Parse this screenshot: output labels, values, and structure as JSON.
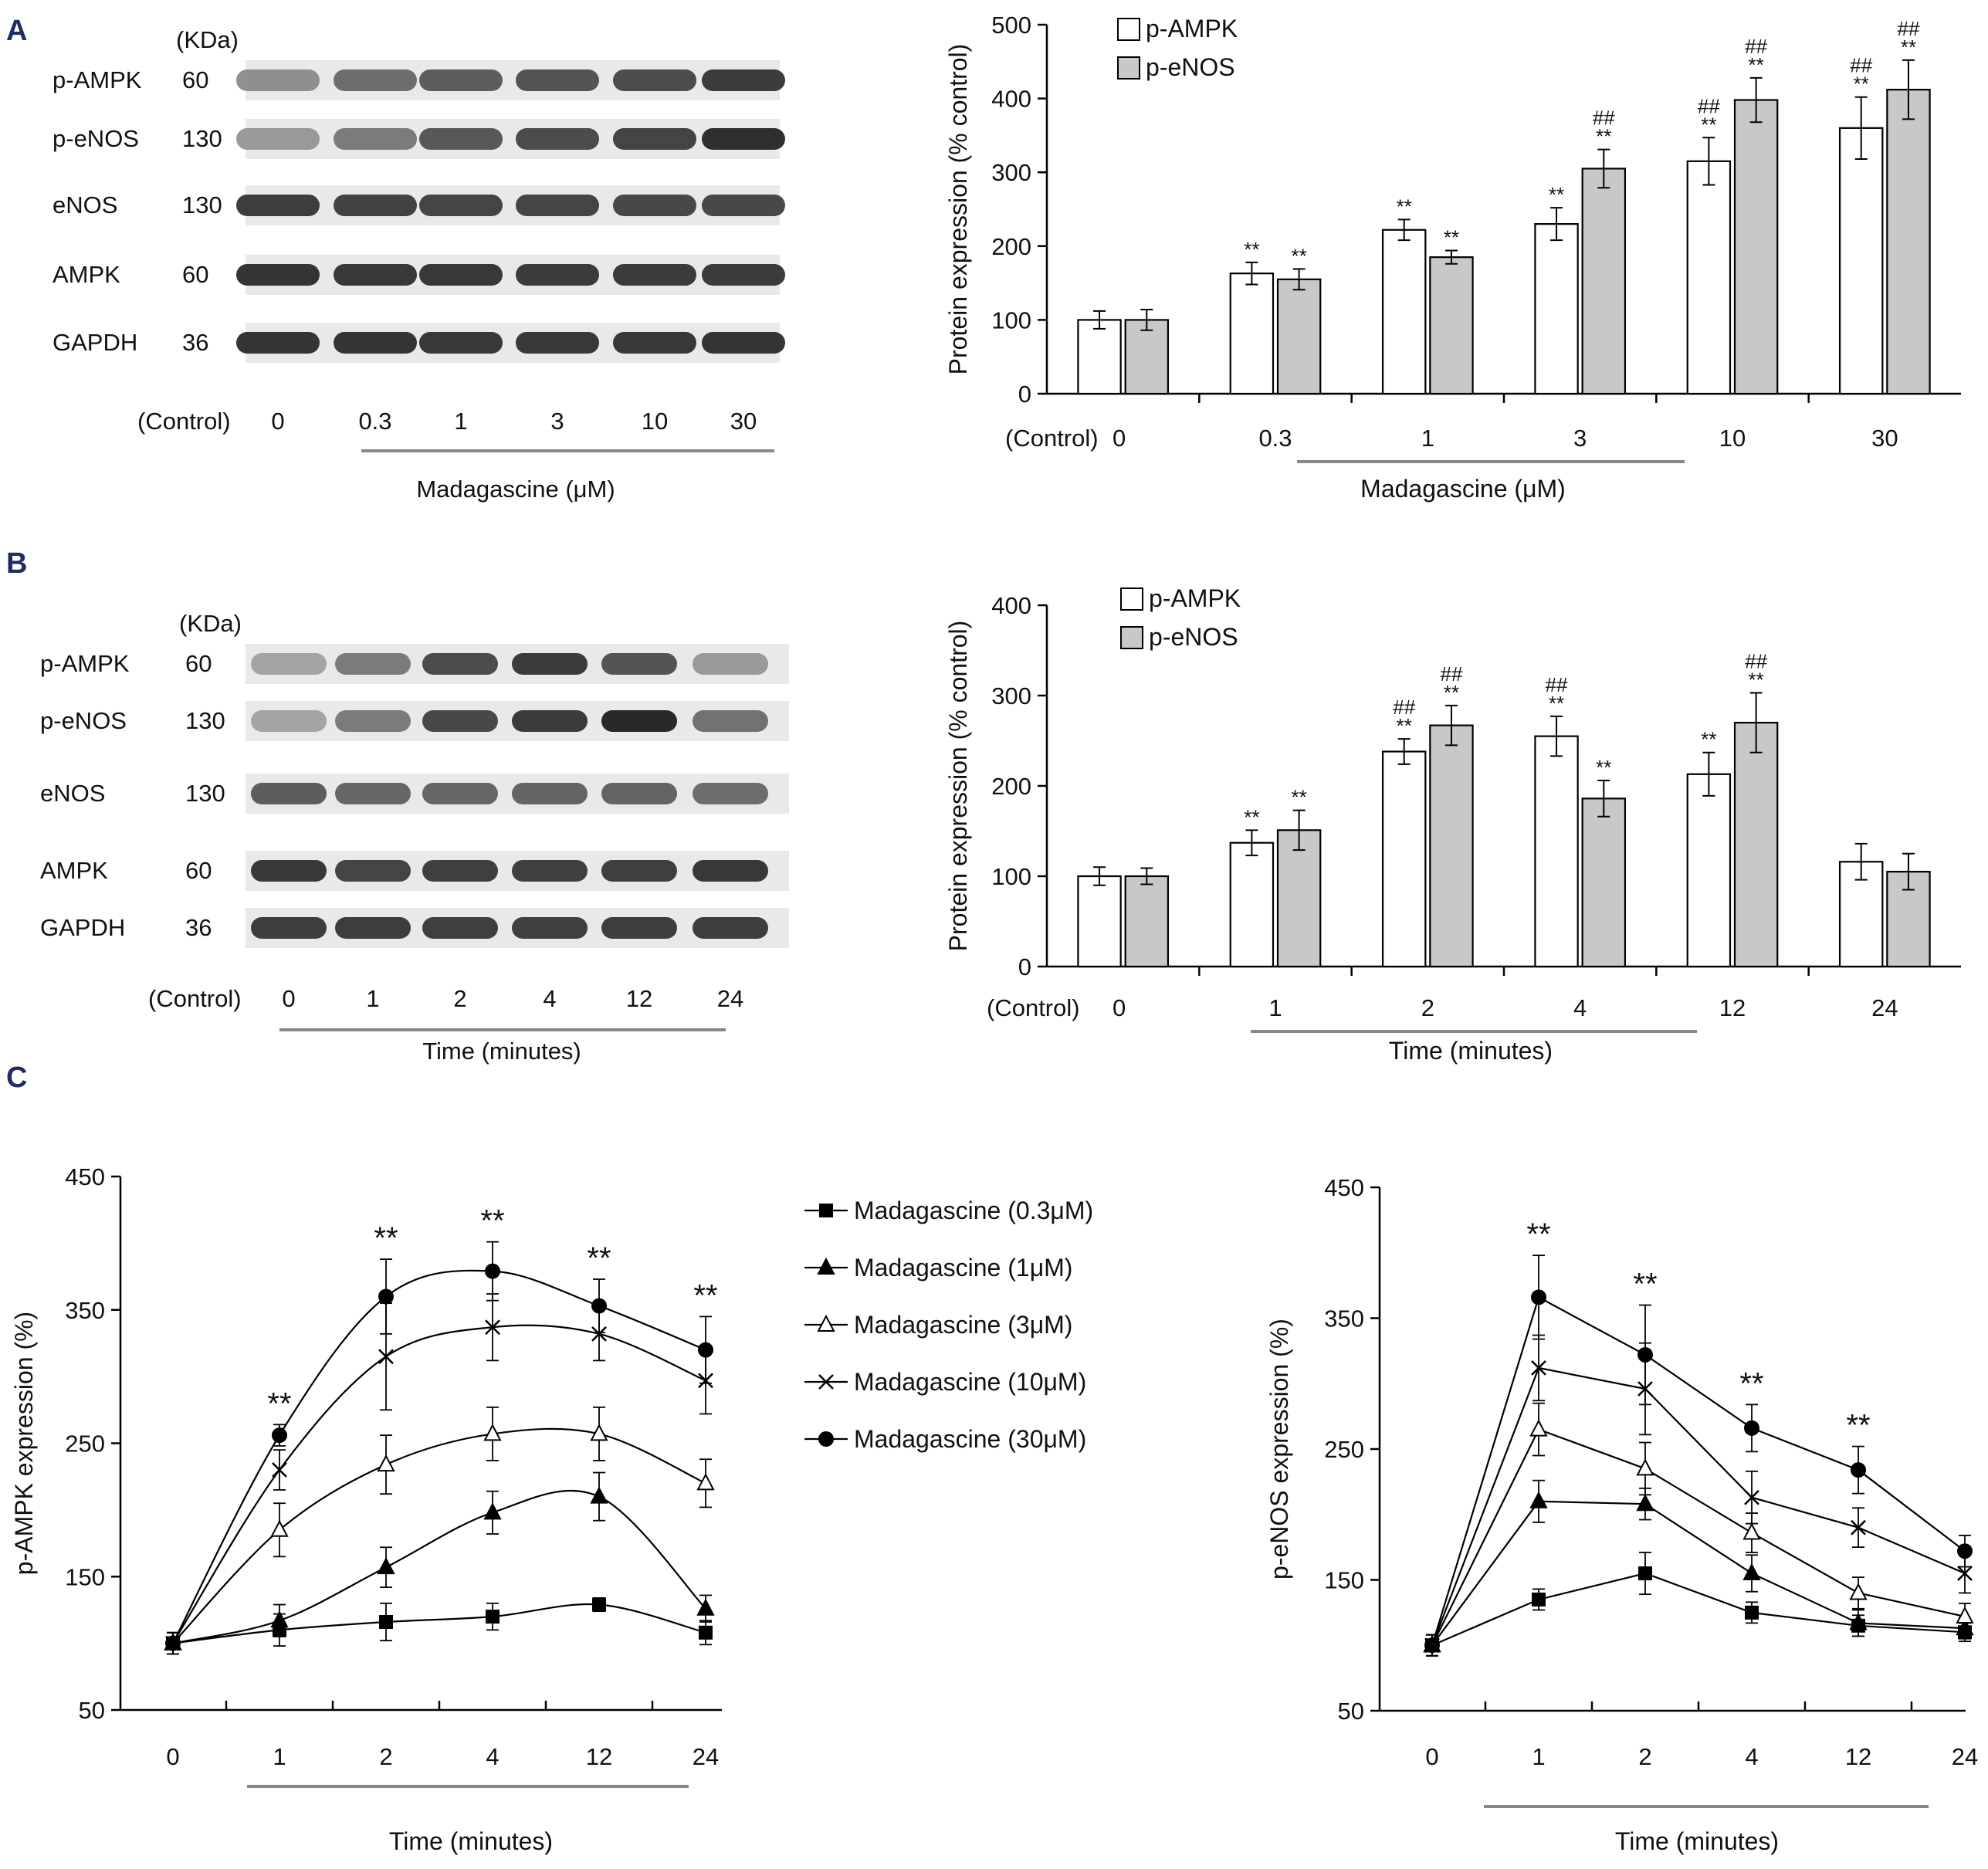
{
  "panel_labels": {
    "a": "A",
    "b": "B",
    "c": "C"
  },
  "blot_a": {
    "kda_header": "(KDa)",
    "rows": [
      {
        "name": "p-AMPK",
        "kda": "60",
        "intensity": [
          0.45,
          0.62,
          0.7,
          0.74,
          0.78,
          0.86
        ]
      },
      {
        "name": "p-eNOS",
        "kda": "130",
        "intensity": [
          0.4,
          0.55,
          0.72,
          0.78,
          0.82,
          0.92
        ]
      },
      {
        "name": "eNOS",
        "kda": "130",
        "intensity": [
          0.85,
          0.83,
          0.82,
          0.82,
          0.8,
          0.8
        ]
      },
      {
        "name": "AMPK",
        "kda": "60",
        "intensity": [
          0.9,
          0.88,
          0.88,
          0.86,
          0.86,
          0.86
        ]
      },
      {
        "name": "GAPDH",
        "kda": "36",
        "intensity": [
          0.9,
          0.9,
          0.88,
          0.88,
          0.88,
          0.9
        ]
      }
    ],
    "control_label": "(Control)",
    "lanes": [
      "0",
      "0.3",
      "1",
      "3",
      "10",
      "30"
    ],
    "group_label": "Madagascine",
    "group_unit": "(μM)"
  },
  "blot_b": {
    "kda_header": "(KDa)",
    "rows": [
      {
        "name": "p-AMPK",
        "kda": "60",
        "intensity": [
          0.35,
          0.55,
          0.78,
          0.86,
          0.74,
          0.4
        ]
      },
      {
        "name": "p-eNOS",
        "kda": "130",
        "intensity": [
          0.35,
          0.55,
          0.8,
          0.86,
          0.95,
          0.6
        ]
      },
      {
        "name": "eNOS",
        "kda": "130",
        "intensity": [
          0.7,
          0.65,
          0.65,
          0.66,
          0.66,
          0.62
        ]
      },
      {
        "name": "AMPK",
        "kda": "60",
        "intensity": [
          0.88,
          0.82,
          0.84,
          0.84,
          0.84,
          0.88
        ]
      },
      {
        "name": "GAPDH",
        "kda": "36",
        "intensity": [
          0.85,
          0.85,
          0.84,
          0.84,
          0.85,
          0.85
        ]
      }
    ],
    "control_label": "(Control)",
    "lanes": [
      "0",
      "1",
      "2",
      "4",
      "12",
      "24"
    ],
    "group_label": "Time (minutes)"
  },
  "chart_data": [
    {
      "id": "A-bar",
      "type": "bar",
      "title": "",
      "ylabel": "Protein expression (% control)",
      "xlabel": "Madagascine",
      "xlabel_unit": "(μM)",
      "control_label": "(Control)",
      "categories": [
        "0",
        "0.3",
        "1",
        "3",
        "10",
        "30"
      ],
      "ylim": [
        0,
        500
      ],
      "yticks": [
        0,
        100,
        200,
        300,
        400,
        500
      ],
      "legend_position": "top-left",
      "series": [
        {
          "name": "p-AMPK",
          "color": "#ffffff",
          "values": [
            100,
            163,
            222,
            230,
            315,
            360
          ],
          "errors": [
            12,
            15,
            14,
            22,
            32,
            42
          ],
          "sig": [
            "",
            "**",
            "**",
            "**",
            "##\n**",
            "##\n**"
          ]
        },
        {
          "name": "p-eNOS",
          "color": "#c8c8c8",
          "values": [
            100,
            155,
            185,
            305,
            398,
            412
          ],
          "errors": [
            14,
            14,
            9,
            26,
            30,
            40
          ],
          "sig": [
            "",
            "**",
            "**",
            "##\n**",
            "##\n**",
            "##\n**"
          ]
        }
      ]
    },
    {
      "id": "B-bar",
      "type": "bar",
      "title": "",
      "ylabel": "Protein expression (% control)",
      "xlabel": "Time (minutes)",
      "control_label": "(Control)",
      "categories": [
        "0",
        "1",
        "2",
        "4",
        "12",
        "24"
      ],
      "ylim": [
        0,
        400
      ],
      "yticks": [
        0,
        100,
        200,
        300,
        400
      ],
      "legend_position": "top-left",
      "series": [
        {
          "name": "p-AMPK",
          "color": "#ffffff",
          "values": [
            100,
            137,
            238,
            255,
            213,
            116
          ],
          "errors": [
            10,
            14,
            14,
            22,
            24,
            20
          ],
          "sig": [
            "",
            "**",
            "##\n**",
            "##\n**",
            "**",
            ""
          ]
        },
        {
          "name": "p-eNOS",
          "color": "#c8c8c8",
          "values": [
            100,
            151,
            267,
            186,
            270,
            105
          ],
          "errors": [
            9,
            22,
            22,
            20,
            33,
            20
          ],
          "sig": [
            "",
            "**",
            "##\n**",
            "**",
            "##\n**",
            ""
          ]
        }
      ]
    },
    {
      "id": "C-left",
      "type": "line",
      "title": "",
      "ylabel": "p-AMPK expression (%)",
      "xlabel": "Time (minutes)",
      "categories": [
        "0",
        "1",
        "2",
        "4",
        "12",
        "24"
      ],
      "ylim": [
        50,
        450
      ],
      "yticks": [
        50,
        150,
        250,
        350,
        450
      ],
      "legend_position": "right",
      "sig_labels": [
        "",
        "**",
        "**",
        "**",
        "**",
        "**"
      ],
      "series": [
        {
          "name": "Madagascine",
          "conc": "(0.3μM)",
          "marker": "square",
          "values": [
            100,
            110,
            116,
            120,
            129,
            108
          ],
          "errors": [
            8,
            12,
            14,
            10,
            5,
            9
          ]
        },
        {
          "name": "Madagascine",
          "conc": "(1μM)",
          "marker": "triangle",
          "values": [
            100,
            117,
            157,
            198,
            210,
            126
          ],
          "errors": [
            8,
            12,
            15,
            16,
            18,
            10
          ]
        },
        {
          "name": "Madagascine",
          "conc": "(3μM)",
          "marker": "triangle-open",
          "values": [
            100,
            185,
            234,
            257,
            257,
            220
          ],
          "errors": [
            8,
            20,
            22,
            20,
            20,
            18
          ]
        },
        {
          "name": "Madagascine",
          "conc": "(10μM)",
          "marker": "cross",
          "values": [
            100,
            230,
            315,
            337,
            332,
            297
          ],
          "errors": [
            8,
            15,
            40,
            25,
            20,
            25
          ]
        },
        {
          "name": "Madagascine",
          "conc": "(30μM)",
          "marker": "circle",
          "values": [
            100,
            256,
            360,
            379,
            353,
            320
          ],
          "errors": [
            8,
            8,
            28,
            22,
            20,
            25
          ]
        }
      ]
    },
    {
      "id": "C-right",
      "type": "line",
      "title": "",
      "ylabel": "p-eNOS expression (%)",
      "xlabel": "Time (minutes)",
      "categories": [
        "0",
        "1",
        "2",
        "4",
        "12",
        "24"
      ],
      "ylim": [
        50,
        450
      ],
      "yticks": [
        50,
        150,
        250,
        350,
        450
      ],
      "sig_labels": [
        "",
        "**",
        "**",
        "**",
        "**",
        ""
      ],
      "series": [
        {
          "name": "Madagascine",
          "conc": "(0.3μM)",
          "marker": "square",
          "values": [
            100,
            135,
            155,
            125,
            115,
            110
          ],
          "errors": [
            8,
            8,
            16,
            8,
            8,
            7
          ]
        },
        {
          "name": "Madagascine",
          "conc": "(1μM)",
          "marker": "triangle",
          "values": [
            100,
            210,
            208,
            155,
            117,
            113
          ],
          "errors": [
            8,
            16,
            12,
            14,
            10,
            8
          ]
        },
        {
          "name": "Madagascine",
          "conc": "(3μM)",
          "marker": "triangle-open",
          "values": [
            100,
            265,
            235,
            186,
            140,
            122
          ],
          "errors": [
            8,
            20,
            20,
            15,
            12,
            10
          ]
        },
        {
          "name": "Madagascine",
          "conc": "(10μM)",
          "marker": "cross",
          "values": [
            100,
            312,
            296,
            213,
            190,
            155
          ],
          "errors": [
            8,
            25,
            35,
            20,
            15,
            15
          ]
        },
        {
          "name": "Madagascine",
          "conc": "(30μM)",
          "marker": "circle",
          "values": [
            100,
            366,
            322,
            266,
            234,
            172
          ],
          "errors": [
            8,
            32,
            38,
            18,
            18,
            12
          ]
        }
      ]
    }
  ]
}
